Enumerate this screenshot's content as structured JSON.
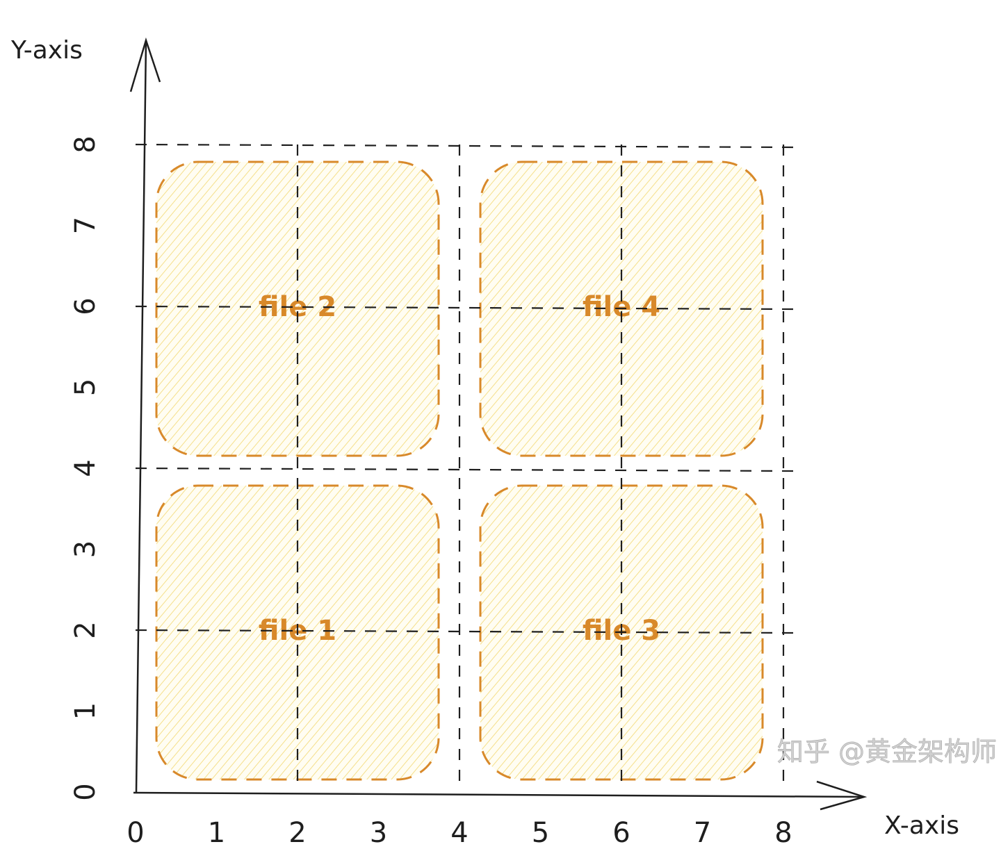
{
  "axes": {
    "x_label": "X-axis",
    "y_label": "Y-axis",
    "x_ticks": [
      "0",
      "1",
      "2",
      "3",
      "4",
      "5",
      "6",
      "7",
      "8"
    ],
    "y_ticks": [
      "0",
      "1",
      "2",
      "3",
      "4",
      "5",
      "6",
      "7",
      "8"
    ]
  },
  "grid": {
    "vertical_lines_at_x": [
      2,
      4,
      6,
      8
    ],
    "horizontal_lines_at_y": [
      2,
      4,
      6,
      8
    ],
    "style": "dashed",
    "color": "#1e1e1e"
  },
  "regions": [
    {
      "label": "file 1",
      "x_range": [
        0,
        4
      ],
      "y_range": [
        0,
        4
      ]
    },
    {
      "label": "file 2",
      "x_range": [
        0,
        4
      ],
      "y_range": [
        4,
        8
      ]
    },
    {
      "label": "file 3",
      "x_range": [
        4,
        8
      ],
      "y_range": [
        0,
        4
      ]
    },
    {
      "label": "file 4",
      "x_range": [
        4,
        8
      ],
      "y_range": [
        4,
        8
      ]
    }
  ],
  "colors": {
    "region_stroke": "#d8892a",
    "region_hatch": "#f5df8a",
    "ink": "#1e1e1e"
  },
  "watermark": "知乎 @黄金架构师"
}
